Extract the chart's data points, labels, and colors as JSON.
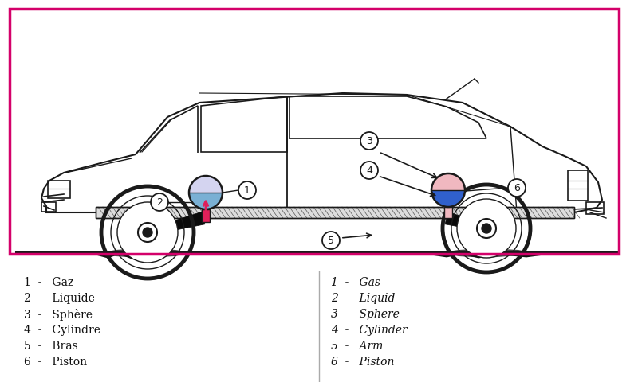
{
  "bg_color": "#ffffff",
  "border_color": "#d4006a",
  "legend_french": [
    [
      "1",
      "Gaz"
    ],
    [
      "2",
      "Liquide"
    ],
    [
      "3",
      "Sphère"
    ],
    [
      "4",
      "Cylindre"
    ],
    [
      "5",
      "Bras"
    ],
    [
      "6",
      "Piston"
    ]
  ],
  "legend_english": [
    [
      "1",
      "Gas"
    ],
    [
      "2",
      "Liquid"
    ],
    [
      "3",
      "Sphere"
    ],
    [
      "4",
      "Cylinder"
    ],
    [
      "5",
      "Arm"
    ],
    [
      "6",
      "Piston"
    ]
  ],
  "line_color": "#1a1a1a",
  "sphere_blue_front": "#7ab0d4",
  "sphere_pink_front": "#e0205a",
  "sphere_blue_rear": "#3060cc",
  "sphere_pink_rear": "#f0b8c0",
  "arm_color": "#0a0a0a",
  "bar_hatch_color": "#888888",
  "shadow_color": "#111111"
}
